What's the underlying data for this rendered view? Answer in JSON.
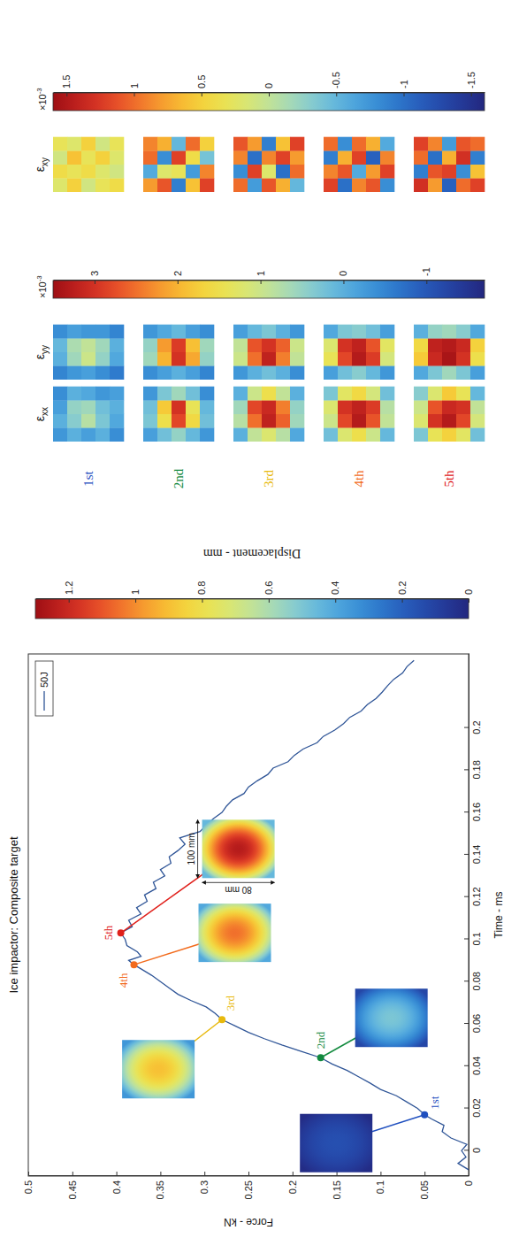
{
  "chart_data": {
    "type": "line",
    "title": "Ice impactor: Composite target",
    "x_label": "Time - ms",
    "y_label": "Force - kN",
    "xlim": [
      -0.012,
      0.235
    ],
    "xticks": [
      0,
      0.02,
      0.04,
      0.06,
      0.08,
      0.1,
      0.12,
      0.14,
      0.16,
      0.18,
      0.2
    ],
    "ylim": [
      0,
      0.5
    ],
    "yticks": [
      0,
      0.05,
      0.1,
      0.15,
      0.2,
      0.25,
      0.3,
      0.35,
      0.4,
      0.45,
      0.5
    ],
    "grid": false,
    "legend": "top-right",
    "x": [
      -0.009,
      -0.006,
      -0.003,
      0,
      0.003,
      0.006,
      0.009,
      0.012,
      0.015,
      0.017,
      0.02,
      0.023,
      0.026,
      0.029,
      0.032,
      0.035,
      0.038,
      0.041,
      0.044,
      0.047,
      0.05,
      0.053,
      0.056,
      0.059,
      0.062,
      0.065,
      0.068,
      0.071,
      0.074,
      0.077,
      0.08,
      0.083,
      0.086,
      0.088,
      0.09,
      0.092,
      0.094,
      0.097,
      0.1,
      0.103,
      0.106,
      0.109,
      0.112,
      0.115,
      0.118,
      0.121,
      0.124,
      0.127,
      0.13,
      0.133,
      0.136,
      0.139,
      0.142,
      0.145,
      0.148,
      0.151,
      0.154,
      0.157,
      0.16,
      0.163,
      0.166,
      0.169,
      0.172,
      0.175,
      0.178,
      0.181,
      0.184,
      0.187,
      0.19,
      0.193,
      0.196,
      0.199,
      0.202,
      0.205,
      0.208,
      0.211,
      0.214,
      0.217,
      0.22,
      0.223,
      0.226,
      0.229,
      0.232
    ],
    "series": [
      {
        "name": "50J",
        "color": "#2f5597",
        "values": [
          0,
          0.012,
          0.003,
          0.008,
          0.002,
          0.02,
          0.03,
          0.028,
          0.042,
          0.05,
          0.058,
          0.07,
          0.082,
          0.1,
          0.112,
          0.125,
          0.138,
          0.155,
          0.168,
          0.19,
          0.212,
          0.232,
          0.25,
          0.265,
          0.28,
          0.288,
          0.298,
          0.315,
          0.33,
          0.34,
          0.35,
          0.36,
          0.372,
          0.38,
          0.386,
          0.372,
          0.376,
          0.388,
          0.39,
          0.395,
          0.382,
          0.386,
          0.372,
          0.377,
          0.365,
          0.368,
          0.355,
          0.358,
          0.345,
          0.35,
          0.338,
          0.34,
          0.33,
          0.322,
          0.328,
          0.305,
          0.298,
          0.29,
          0.28,
          0.275,
          0.268,
          0.255,
          0.25,
          0.24,
          0.228,
          0.222,
          0.205,
          0.198,
          0.188,
          0.172,
          0.165,
          0.152,
          0.142,
          0.135,
          0.122,
          0.115,
          0.105,
          0.098,
          0.092,
          0.085,
          0.075,
          0.07,
          0.062
        ]
      }
    ],
    "snapshots": [
      {
        "label": "1st",
        "color": "#1f4fbf",
        "time": 0.017,
        "force": 0.05,
        "displacement_edge": 0.02,
        "displacement_peak": 0.15
      },
      {
        "label": "2nd",
        "color": "#128a3e",
        "time": 0.044,
        "force": 0.168,
        "displacement_edge": 0.12,
        "displacement_peak": 0.5
      },
      {
        "label": "3rd",
        "color": "#e8b90c",
        "time": 0.062,
        "force": 0.28,
        "displacement_edge": 0.35,
        "displacement_peak": 0.9
      },
      {
        "label": "4th",
        "color": "#f26b1d",
        "time": 0.088,
        "force": 0.38,
        "displacement_edge": 0.4,
        "displacement_peak": 1.05
      },
      {
        "label": "5th",
        "color": "#e0201b",
        "time": 0.103,
        "force": 0.395,
        "displacement_edge": 0.45,
        "displacement_peak": 1.25,
        "dimensions": {
          "width": "100 mm",
          "height": "80 mm"
        }
      }
    ],
    "displacement_colorbar": {
      "label": "Displacement - mm",
      "range": [
        0,
        1.3
      ],
      "ticks": [
        0,
        0.2,
        0.4,
        0.6,
        0.8,
        1,
        1.2
      ]
    },
    "strain_groups": [
      {
        "colorbar": {
          "range": [
            -1.7,
            3.5
          ],
          "ticks": [
            -1,
            0,
            1,
            2,
            3
          ],
          "multiplier": "×10",
          "exponent": "-3"
        },
        "maps": [
          {
            "symbol": "ε",
            "sub": "xx",
            "cells": [
              [
                [
                  -0.3,
                  0,
                  -0.2,
                  -0.4
                ],
                [
                  0,
                  0.4,
                  0.5,
                  0
                ],
                [
                  -0.2,
                  0.8,
                  0.6,
                  -0.1
                ],
                [
                  0,
                  0.3,
                  0.2,
                  -0.3
                ],
                [
                  -0.4,
                  -0.1,
                  0,
                  -0.2
                ]
              ],
              [
                [
                  -0.2,
                  0.3,
                  0.2,
                  -0.3
                ],
                [
                  0.2,
                  1.5,
                  1.8,
                  0.3
                ],
                [
                  0.5,
                  2.8,
                  3.0,
                  0.6
                ],
                [
                  0.1,
                  1.6,
                  1.4,
                  0.2
                ],
                [
                  -0.3,
                  0.2,
                  0.1,
                  -0.4
                ]
              ],
              [
                [
                  0,
                  0.8,
                  0.6,
                  0
                ],
                [
                  0.9,
                  2.5,
                  2.8,
                  1.0
                ],
                [
                  1.2,
                  3.2,
                  3.1,
                  1.5
                ],
                [
                  0.8,
                  2.6,
                  2.4,
                  0.9
                ],
                [
                  -0.1,
                  0.6,
                  0.5,
                  0
                ]
              ],
              [
                [
                  0.2,
                  1.0,
                  1.2,
                  0.3
                ],
                [
                  1.2,
                  2.8,
                  3.0,
                  1.3
                ],
                [
                  1.5,
                  3.3,
                  3.2,
                  1.6
                ],
                [
                  1.0,
                  2.7,
                  2.9,
                  1.1
                ],
                [
                  0.1,
                  0.9,
                  0.8,
                  0.2
                ]
              ],
              [
                [
                  0.3,
                  1.2,
                  1.0,
                  0.4
                ],
                [
                  1.4,
                  3.0,
                  2.7,
                  1.2
                ],
                [
                  1.7,
                  3.3,
                  3.1,
                  1.8
                ],
                [
                  1.3,
                  2.8,
                  3.0,
                  1.4
                ],
                [
                  0.2,
                  1.1,
                  0.9,
                  0.1
                ]
              ]
            ]
          },
          {
            "symbol": "ε",
            "sub": "yy",
            "cells": [
              [
                [
                  -0.5,
                  0,
                  0.1,
                  -0.4
                ],
                [
                  -0.3,
                  0.6,
                  0.7,
                  -0.2
                ],
                [
                  -0.2,
                  1.0,
                  0.9,
                  -0.3
                ],
                [
                  -0.4,
                  0.5,
                  0.6,
                  -0.3
                ],
                [
                  -0.6,
                  -0.1,
                  0,
                  -0.5
                ]
              ],
              [
                [
                  -0.4,
                  0.6,
                  0.5,
                  -0.3
                ],
                [
                  -0.2,
                  2.0,
                  2.2,
                  -0.1
                ],
                [
                  0,
                  3.0,
                  2.9,
                  0.1
                ],
                [
                  -0.2,
                  2.1,
                  1.9,
                  -0.2
                ],
                [
                  -0.5,
                  0.5,
                  0.6,
                  -0.4
                ]
              ],
              [
                [
                  -0.3,
                  1.0,
                  0.9,
                  -0.2
                ],
                [
                  0,
                  2.5,
                  2.7,
                  0.1
                ],
                [
                  0.2,
                  3.2,
                  3.0,
                  0.3
                ],
                [
                  0,
                  2.4,
                  2.6,
                  0
                ],
                [
                  -0.4,
                  0.9,
                  1.0,
                  -0.3
                ]
              ],
              [
                [
                  -0.2,
                  1.4,
                  1.2,
                  -0.1
                ],
                [
                  0.2,
                  2.8,
                  3.0,
                  0.3
                ],
                [
                  0.4,
                  3.3,
                  3.2,
                  0.4
                ],
                [
                  0.1,
                  2.9,
                  2.7,
                  0.2
                ],
                [
                  -0.3,
                  1.1,
                  1.3,
                  -0.2
                ]
              ],
              [
                [
                  -0.1,
                  1.8,
                  1.6,
                  0
                ],
                [
                  0.3,
                  3.1,
                  3.2,
                  0.5
                ],
                [
                  0.6,
                  3.4,
                  3.3,
                  0.6
                ],
                [
                  0.3,
                  3.0,
                  3.1,
                  0.4
                ],
                [
                  -0.2,
                  1.5,
                  1.7,
                  -0.1
                ]
              ]
            ]
          }
        ]
      },
      {
        "colorbar": {
          "range": [
            -1.6,
            1.6
          ],
          "ticks": [
            -1.5,
            -1,
            -0.5,
            0,
            0.5,
            1,
            1.5
          ],
          "multiplier": "×10",
          "exponent": "-3"
        },
        "maps": [
          {
            "symbol": "ε",
            "sub": "xy",
            "cells": [
              [
                [
                  0.2,
                  0.4,
                  0.1,
                  0.3
                ],
                [
                  0.5,
                  0.3,
                  0.6,
                  0.2
                ],
                [
                  0.1,
                  0.4,
                  0.3,
                  0.5
                ],
                [
                  0.3,
                  0.2,
                  0.5,
                  0.1
                ],
                [
                  0.4,
                  0.1,
                  0.2,
                  0.3
                ]
              ],
              [
                [
                  0.8,
                  -0.6,
                  1.0,
                  0.9
                ],
                [
                  1.1,
                  0.2,
                  -0.8,
                  0.7
                ],
                [
                  -0.9,
                  0.3,
                  1.2,
                  -0.5
                ],
                [
                  0.6,
                  -0.7,
                  0.4,
                  1.0
                ],
                [
                  1.2,
                  0.9,
                  -0.4,
                  0.5
                ]
              ],
              [
                [
                  1.0,
                  -0.8,
                  0.9,
                  1.1
                ],
                [
                  -0.7,
                  1.2,
                  -1.0,
                  0.8
                ],
                [
                  1.1,
                  0.2,
                  0.9,
                  -0.9
                ],
                [
                  0.7,
                  -1.0,
                  1.2,
                  0.6
                ],
                [
                  -0.5,
                  1.0,
                  0.8,
                  1.2
                ]
              ],
              [
                [
                  1.2,
                  0.9,
                  -0.9,
                  1.0
                ],
                [
                  -1.0,
                  1.1,
                  0.7,
                  -0.8
                ],
                [
                  0.9,
                  -0.6,
                  1.2,
                  1.0
                ],
                [
                  1.1,
                  0.8,
                  -1.1,
                  0.7
                ],
                [
                  -0.8,
                  1.2,
                  0.9,
                  -0.6
                ]
              ],
              [
                [
                  1.3,
                  -0.9,
                  1.0,
                  1.2
                ],
                [
                  0.8,
                  1.1,
                  -1.0,
                  0.9
                ],
                [
                  -1.1,
                  1.2,
                  0.7,
                  -0.7
                ],
                [
                  1.0,
                  -0.8,
                  1.3,
                  1.1
                ],
                [
                  1.2,
                  0.6,
                  -0.9,
                  1.0
                ]
              ]
            ]
          }
        ]
      }
    ]
  }
}
